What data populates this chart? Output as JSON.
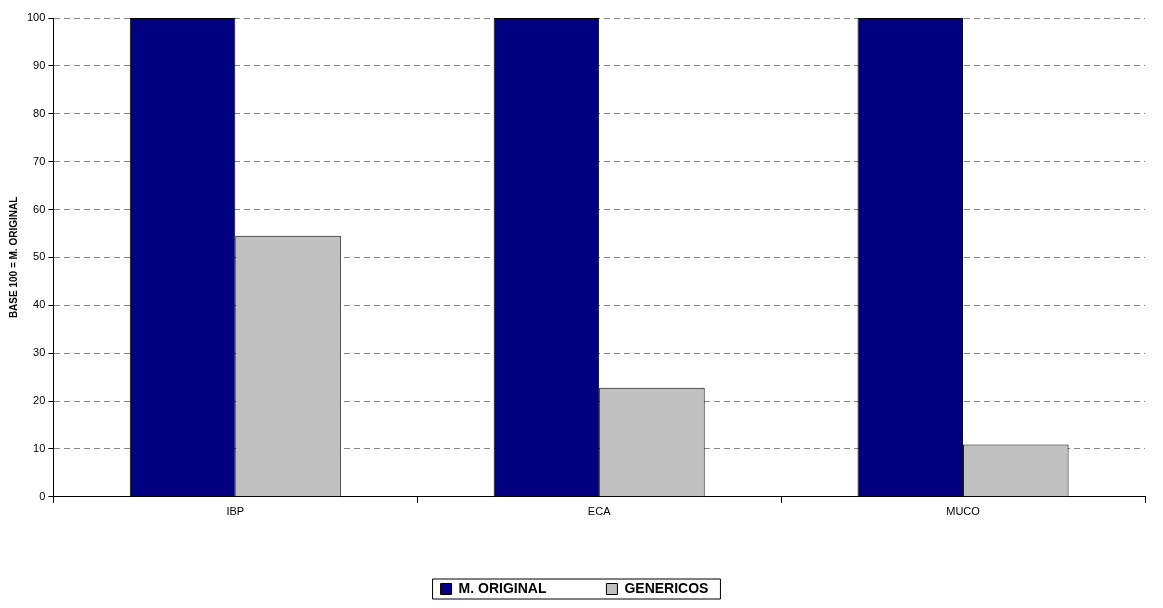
{
  "chart_data": {
    "type": "bar",
    "ylabel": "BASE 100 = M. ORIGINAL",
    "categories": [
      "IBP",
      "ECA",
      "MUCO"
    ],
    "series": [
      {
        "name": "M. ORIGINAL",
        "color": "#000080",
        "values": [
          100,
          100,
          100
        ]
      },
      {
        "name": "GENERICOS",
        "color": "#c0c0c0",
        "values": [
          54.5,
          22.8,
          10.9
        ]
      }
    ],
    "ylim": [
      0,
      100
    ],
    "yticks": [
      0,
      10,
      20,
      30,
      40,
      50,
      60,
      70,
      80,
      90,
      100
    ],
    "grid": "y",
    "legend": "bottom"
  }
}
